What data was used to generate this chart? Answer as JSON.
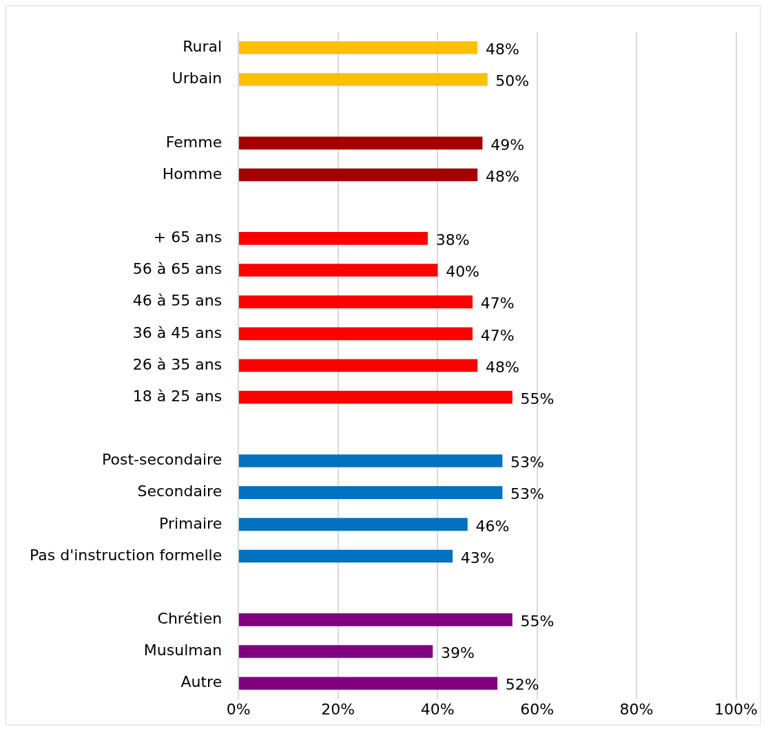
{
  "chart_data": {
    "type": "bar",
    "orientation": "horizontal",
    "categories": [
      "Rural",
      "Urbain",
      null,
      "Femme",
      "Homme",
      null,
      "+ 65 ans",
      "56 à 65 ans",
      "46 à 55 ans",
      "36 à 45 ans",
      "26 à 35 ans",
      "18 à 25 ans",
      null,
      "Post-secondaire",
      "Secondaire",
      "Primaire",
      "Pas d'instruction formelle",
      null,
      "Chrétien",
      "Musulman",
      "Autre"
    ],
    "values": [
      48,
      50,
      null,
      49,
      48,
      null,
      38,
      40,
      47,
      47,
      48,
      55,
      null,
      53,
      53,
      46,
      43,
      null,
      55,
      39,
      52
    ],
    "colors": [
      "#ffc000",
      "#ffc000",
      "#ffffff",
      "#a50000",
      "#a50000",
      "#ffffff",
      "#ff0000",
      "#ff0000",
      "#ff0000",
      "#ff0000",
      "#ff0000",
      "#ff0000",
      "#ffffff",
      "#0070c0",
      "#0070c0",
      "#0070c0",
      "#0070c0",
      "#ffffff",
      "#800080",
      "#800080",
      "#800080"
    ],
    "value_labels": [
      "48%",
      "50%",
      null,
      "49%",
      "48%",
      null,
      "38%",
      "40%",
      "47%",
      "47%",
      "48%",
      "55%",
      null,
      "53%",
      "53%",
      "46%",
      "43%",
      null,
      "55%",
      "39%",
      "52%"
    ],
    "xlim": [
      0,
      100
    ],
    "xticks": [
      {
        "value": 0,
        "label": "0%"
      },
      {
        "value": 20,
        "label": "20%"
      },
      {
        "value": 40,
        "label": "40%"
      },
      {
        "value": 60,
        "label": "60%"
      },
      {
        "value": 80,
        "label": "80%"
      },
      {
        "value": 100,
        "label": "100%"
      }
    ],
    "grid": "x",
    "legend": false
  }
}
